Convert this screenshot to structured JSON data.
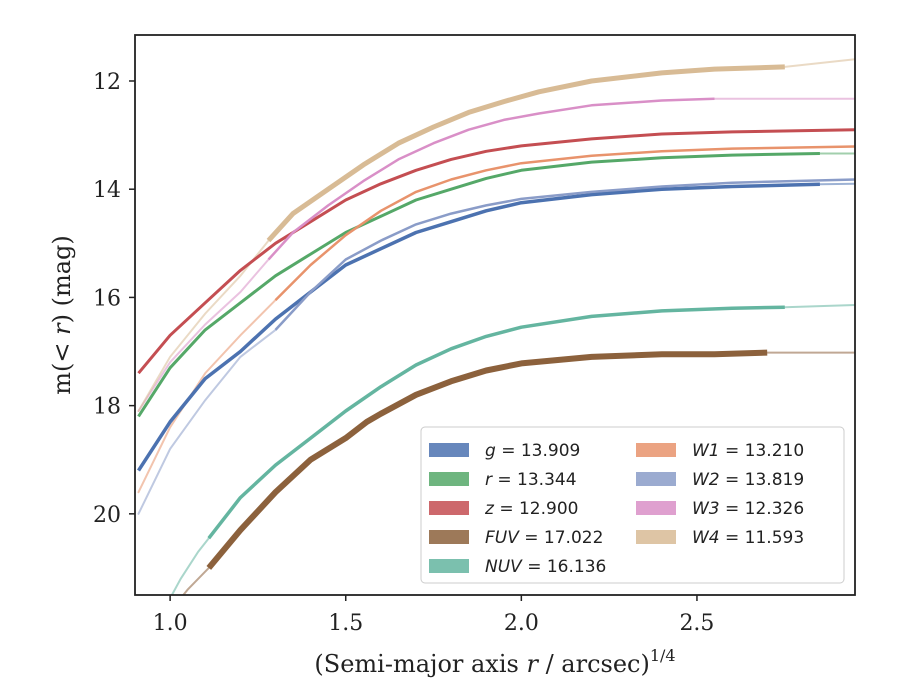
{
  "chart_data": {
    "type": "line",
    "xlabel_main": "(Semi-major axis ",
    "xlabel_var": "r",
    "xlabel_unit": " / arcsec)",
    "xlabel_exp": "1/4",
    "ylabel_pre": "m(< ",
    "ylabel_var": "r",
    "ylabel_post": ") (mag)",
    "xlim": [
      0.9,
      2.95
    ],
    "ylim": [
      21.5,
      11.15
    ],
    "y_inverted": true,
    "xticks": [
      1.0,
      1.5,
      2.0,
      2.5
    ],
    "xtick_labels": [
      "1.0",
      "1.5",
      "2.0",
      "2.5"
    ],
    "yticks": [
      12,
      14,
      16,
      18,
      20
    ],
    "ytick_labels": [
      "12",
      "14",
      "16",
      "18",
      "20"
    ],
    "legend_position": "lower-right",
    "legend_columns": 2,
    "series": [
      {
        "name": "g",
        "value": "13.909",
        "color": "#4c72b0",
        "width": 3.5,
        "x": [
          0.91,
          1.0,
          1.1,
          1.2,
          1.3,
          1.4,
          1.5,
          1.6,
          1.7,
          1.8,
          1.9,
          2.0,
          2.2,
          2.4,
          2.6,
          2.85
        ],
        "y": [
          19.2,
          18.3,
          17.5,
          17.0,
          16.4,
          15.9,
          15.4,
          15.1,
          14.8,
          14.6,
          14.4,
          14.25,
          14.1,
          14.0,
          13.95,
          13.91
        ]
      },
      {
        "name": "r",
        "value": "13.344",
        "color": "#55a868",
        "width": 3,
        "x": [
          0.91,
          1.0,
          1.1,
          1.2,
          1.3,
          1.4,
          1.5,
          1.6,
          1.7,
          1.8,
          1.9,
          2.0,
          2.2,
          2.4,
          2.6,
          2.85
        ],
        "y": [
          18.2,
          17.3,
          16.6,
          16.1,
          15.6,
          15.2,
          14.8,
          14.5,
          14.2,
          14.0,
          13.8,
          13.65,
          13.5,
          13.42,
          13.37,
          13.34
        ]
      },
      {
        "name": "z",
        "value": "12.900",
        "color": "#c44e52",
        "width": 3,
        "x": [
          0.91,
          1.0,
          1.1,
          1.2,
          1.3,
          1.4,
          1.5,
          1.6,
          1.7,
          1.8,
          1.9,
          2.0,
          2.2,
          2.4,
          2.6,
          2.95
        ],
        "y": [
          17.4,
          16.7,
          16.1,
          15.5,
          15.0,
          14.6,
          14.2,
          13.9,
          13.65,
          13.45,
          13.3,
          13.2,
          13.07,
          12.98,
          12.94,
          12.9
        ]
      },
      {
        "name": "FUV",
        "value": "17.022",
        "color": "#8c613c",
        "width": 6,
        "x": [
          1.11,
          1.2,
          1.3,
          1.4,
          1.5,
          1.56,
          1.6,
          1.7,
          1.8,
          1.9,
          2.0,
          2.2,
          2.4,
          2.55,
          2.7
        ],
        "y": [
          21.0,
          20.3,
          19.6,
          19.0,
          18.6,
          18.3,
          18.15,
          17.8,
          17.55,
          17.35,
          17.22,
          17.1,
          17.05,
          17.05,
          17.02
        ]
      },
      {
        "name": "NUV",
        "value": "16.136",
        "color": "#64b5a0",
        "width": 3.5,
        "x": [
          1.11,
          1.2,
          1.3,
          1.4,
          1.5,
          1.6,
          1.7,
          1.8,
          1.9,
          2.0,
          2.2,
          2.4,
          2.6,
          2.75
        ],
        "y": [
          20.45,
          19.7,
          19.1,
          18.6,
          18.1,
          17.65,
          17.25,
          16.95,
          16.72,
          16.55,
          16.35,
          16.25,
          16.2,
          16.18
        ]
      },
      {
        "name": "W1",
        "value": "13.210",
        "color": "#e8936c",
        "width": 2.5,
        "x": [
          1.3,
          1.4,
          1.5,
          1.6,
          1.7,
          1.8,
          1.9,
          2.0,
          2.2,
          2.4,
          2.6,
          2.95
        ],
        "y": [
          16.05,
          15.4,
          14.85,
          14.4,
          14.05,
          13.82,
          13.65,
          13.52,
          13.38,
          13.3,
          13.25,
          13.21
        ]
      },
      {
        "name": "W2",
        "value": "13.819",
        "color": "#8a9cc8",
        "width": 2.5,
        "x": [
          1.3,
          1.4,
          1.5,
          1.6,
          1.7,
          1.8,
          1.9,
          2.0,
          2.2,
          2.4,
          2.6,
          2.95
        ],
        "y": [
          16.6,
          15.9,
          15.3,
          14.95,
          14.65,
          14.45,
          14.3,
          14.18,
          14.05,
          13.95,
          13.88,
          13.82
        ]
      },
      {
        "name": "W3",
        "value": "12.326",
        "color": "#d98fc7",
        "width": 2.5,
        "x": [
          1.28,
          1.35,
          1.45,
          1.55,
          1.65,
          1.75,
          1.85,
          1.95,
          2.05,
          2.2,
          2.4,
          2.55
        ],
        "y": [
          15.3,
          14.8,
          14.3,
          13.85,
          13.45,
          13.15,
          12.9,
          12.72,
          12.6,
          12.45,
          12.36,
          12.33
        ]
      },
      {
        "name": "W4",
        "value": "11.593",
        "color": "#d8bb95",
        "width": 5,
        "x": [
          1.28,
          1.35,
          1.45,
          1.55,
          1.65,
          1.75,
          1.85,
          1.95,
          2.05,
          2.2,
          2.4,
          2.55,
          2.75
        ],
        "y": [
          14.95,
          14.45,
          14.0,
          13.55,
          13.15,
          12.85,
          12.58,
          12.38,
          12.2,
          12.0,
          11.85,
          11.78,
          11.74
        ]
      }
    ],
    "faded_extensions": [
      {
        "name": "g",
        "x": [
          2.85,
          2.95
        ],
        "y": [
          13.91,
          13.9
        ]
      },
      {
        "name": "r",
        "x": [
          2.85,
          2.95
        ],
        "y": [
          13.34,
          13.34
        ]
      },
      {
        "name": "FUV",
        "x": [
          0.95,
          1.0,
          1.05,
          1.11
        ],
        "y": [
          22.2,
          21.8,
          21.4,
          21.0
        ]
      },
      {
        "name": "FUV",
        "x": [
          2.7,
          2.95
        ],
        "y": [
          17.02,
          17.02
        ]
      },
      {
        "name": "NUV",
        "x": [
          0.98,
          1.03,
          1.08,
          1.11
        ],
        "y": [
          21.8,
          21.2,
          20.7,
          20.45
        ]
      },
      {
        "name": "NUV",
        "x": [
          2.75,
          2.95
        ],
        "y": [
          16.18,
          16.14
        ]
      },
      {
        "name": "W1",
        "x": [
          0.91,
          1.0,
          1.1,
          1.2,
          1.3
        ],
        "y": [
          19.6,
          18.4,
          17.4,
          16.7,
          16.05
        ]
      },
      {
        "name": "W2",
        "x": [
          0.91,
          1.0,
          1.1,
          1.2,
          1.3
        ],
        "y": [
          20.0,
          18.8,
          17.9,
          17.1,
          16.6
        ]
      },
      {
        "name": "W3",
        "x": [
          0.91,
          1.0,
          1.1,
          1.2,
          1.28
        ],
        "y": [
          18.1,
          17.2,
          16.5,
          15.9,
          15.3
        ]
      },
      {
        "name": "W3",
        "x": [
          2.55,
          2.95
        ],
        "y": [
          12.33,
          12.33
        ]
      },
      {
        "name": "W4",
        "x": [
          0.91,
          1.0,
          1.1,
          1.2,
          1.28
        ],
        "y": [
          18.1,
          17.1,
          16.3,
          15.6,
          14.95
        ]
      },
      {
        "name": "W4",
        "x": [
          2.75,
          2.95
        ],
        "y": [
          11.74,
          11.6
        ]
      }
    ]
  }
}
